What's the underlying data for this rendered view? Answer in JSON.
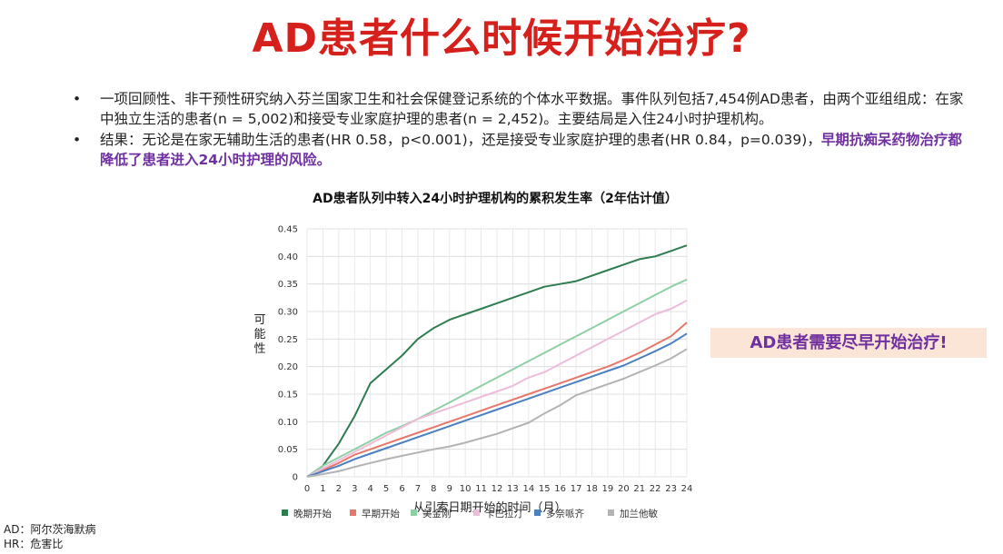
{
  "slide": {
    "title": "AD患者什么时候开始治疗?",
    "title_color": "#d6201b",
    "bullets": [
      {
        "marker": "•",
        "text": "一项回顾性、非干预性研究纳入芬兰国家卫生和社会保健登记系统的个体水平数据。事件队列包括7,454例AD患者，由两个亚组组成：在家中独立生活的患者(n = 5,002)和接受专业家庭护理的患者(n = 2,452)。主要结局是入住24小时护理机构。",
        "highlight": ""
      },
      {
        "marker": "•",
        "text": "结果：无论是在家无辅助生活的患者(HR 0.58，p<0.001)，还是接受专业家庭护理的患者(HR 0.84，p=0.039)，",
        "highlight": "早期抗痴呆药物治疗都降低了患者进入24小时护理的风险。"
      }
    ],
    "highlight_color": "#7030a0",
    "callout": {
      "text": "AD患者需要尽早开始治疗!",
      "text_color": "#7030a0",
      "background": "#fbe5d6"
    },
    "footnotes": [
      "AD：阿尔茨海默病",
      "HR：危害比"
    ]
  },
  "chart_data": {
    "type": "line",
    "title": "AD患者队列中转入24小时护理机构的累积发生率（2年估计值）",
    "xlabel": "从引索日期开始的时间（月）",
    "ylabel": "可能性",
    "x": [
      0,
      1,
      2,
      3,
      4,
      5,
      6,
      7,
      8,
      9,
      10,
      11,
      12,
      13,
      14,
      15,
      16,
      17,
      18,
      19,
      20,
      21,
      22,
      23,
      24
    ],
    "xlim": [
      0,
      24
    ],
    "ylim": [
      0,
      0.45
    ],
    "yticks": [
      "0",
      "0.05",
      "0.10",
      "0.15",
      "0.20",
      "0.25",
      "0.30",
      "0.35",
      "0.40",
      "0.45"
    ],
    "grid": true,
    "legend_position": "bottom",
    "series": [
      {
        "name": "晚期开始",
        "color": "#2e7d4f",
        "values": [
          0,
          0.02,
          0.06,
          0.11,
          0.17,
          0.195,
          0.22,
          0.25,
          0.27,
          0.285,
          0.295,
          0.305,
          0.315,
          0.325,
          0.335,
          0.345,
          0.35,
          0.355,
          0.365,
          0.375,
          0.385,
          0.395,
          0.4,
          0.41,
          0.42
        ]
      },
      {
        "name": "早期开始",
        "color": "#e8776a",
        "values": [
          0,
          0.012,
          0.025,
          0.04,
          0.05,
          0.06,
          0.07,
          0.08,
          0.09,
          0.1,
          0.11,
          0.12,
          0.13,
          0.14,
          0.15,
          0.16,
          0.17,
          0.18,
          0.19,
          0.2,
          0.212,
          0.225,
          0.24,
          0.255,
          0.28
        ]
      },
      {
        "name": "美金刚",
        "color": "#8fcfa5",
        "values": [
          0,
          0.02,
          0.035,
          0.05,
          0.065,
          0.08,
          0.092,
          0.105,
          0.12,
          0.135,
          0.15,
          0.165,
          0.18,
          0.195,
          0.21,
          0.225,
          0.24,
          0.255,
          0.27,
          0.285,
          0.3,
          0.315,
          0.33,
          0.345,
          0.358
        ]
      },
      {
        "name": "卡巴拉汀",
        "color": "#eebbd8",
        "values": [
          0,
          0.015,
          0.03,
          0.045,
          0.06,
          0.075,
          0.09,
          0.105,
          0.115,
          0.125,
          0.135,
          0.145,
          0.155,
          0.165,
          0.18,
          0.19,
          0.205,
          0.22,
          0.235,
          0.25,
          0.265,
          0.28,
          0.295,
          0.305,
          0.32
        ]
      },
      {
        "name": "多奈哌齐",
        "color": "#4a7fc1",
        "values": [
          0,
          0.01,
          0.02,
          0.032,
          0.042,
          0.052,
          0.062,
          0.072,
          0.082,
          0.092,
          0.102,
          0.112,
          0.122,
          0.132,
          0.142,
          0.152,
          0.162,
          0.172,
          0.182,
          0.192,
          0.202,
          0.215,
          0.228,
          0.242,
          0.26
        ]
      },
      {
        "name": "加兰他敏",
        "color": "#b3b3b3",
        "values": [
          0,
          0.005,
          0.01,
          0.018,
          0.025,
          0.032,
          0.038,
          0.044,
          0.05,
          0.055,
          0.062,
          0.07,
          0.078,
          0.088,
          0.098,
          0.115,
          0.13,
          0.148,
          0.158,
          0.168,
          0.178,
          0.19,
          0.202,
          0.215,
          0.232
        ]
      }
    ]
  }
}
